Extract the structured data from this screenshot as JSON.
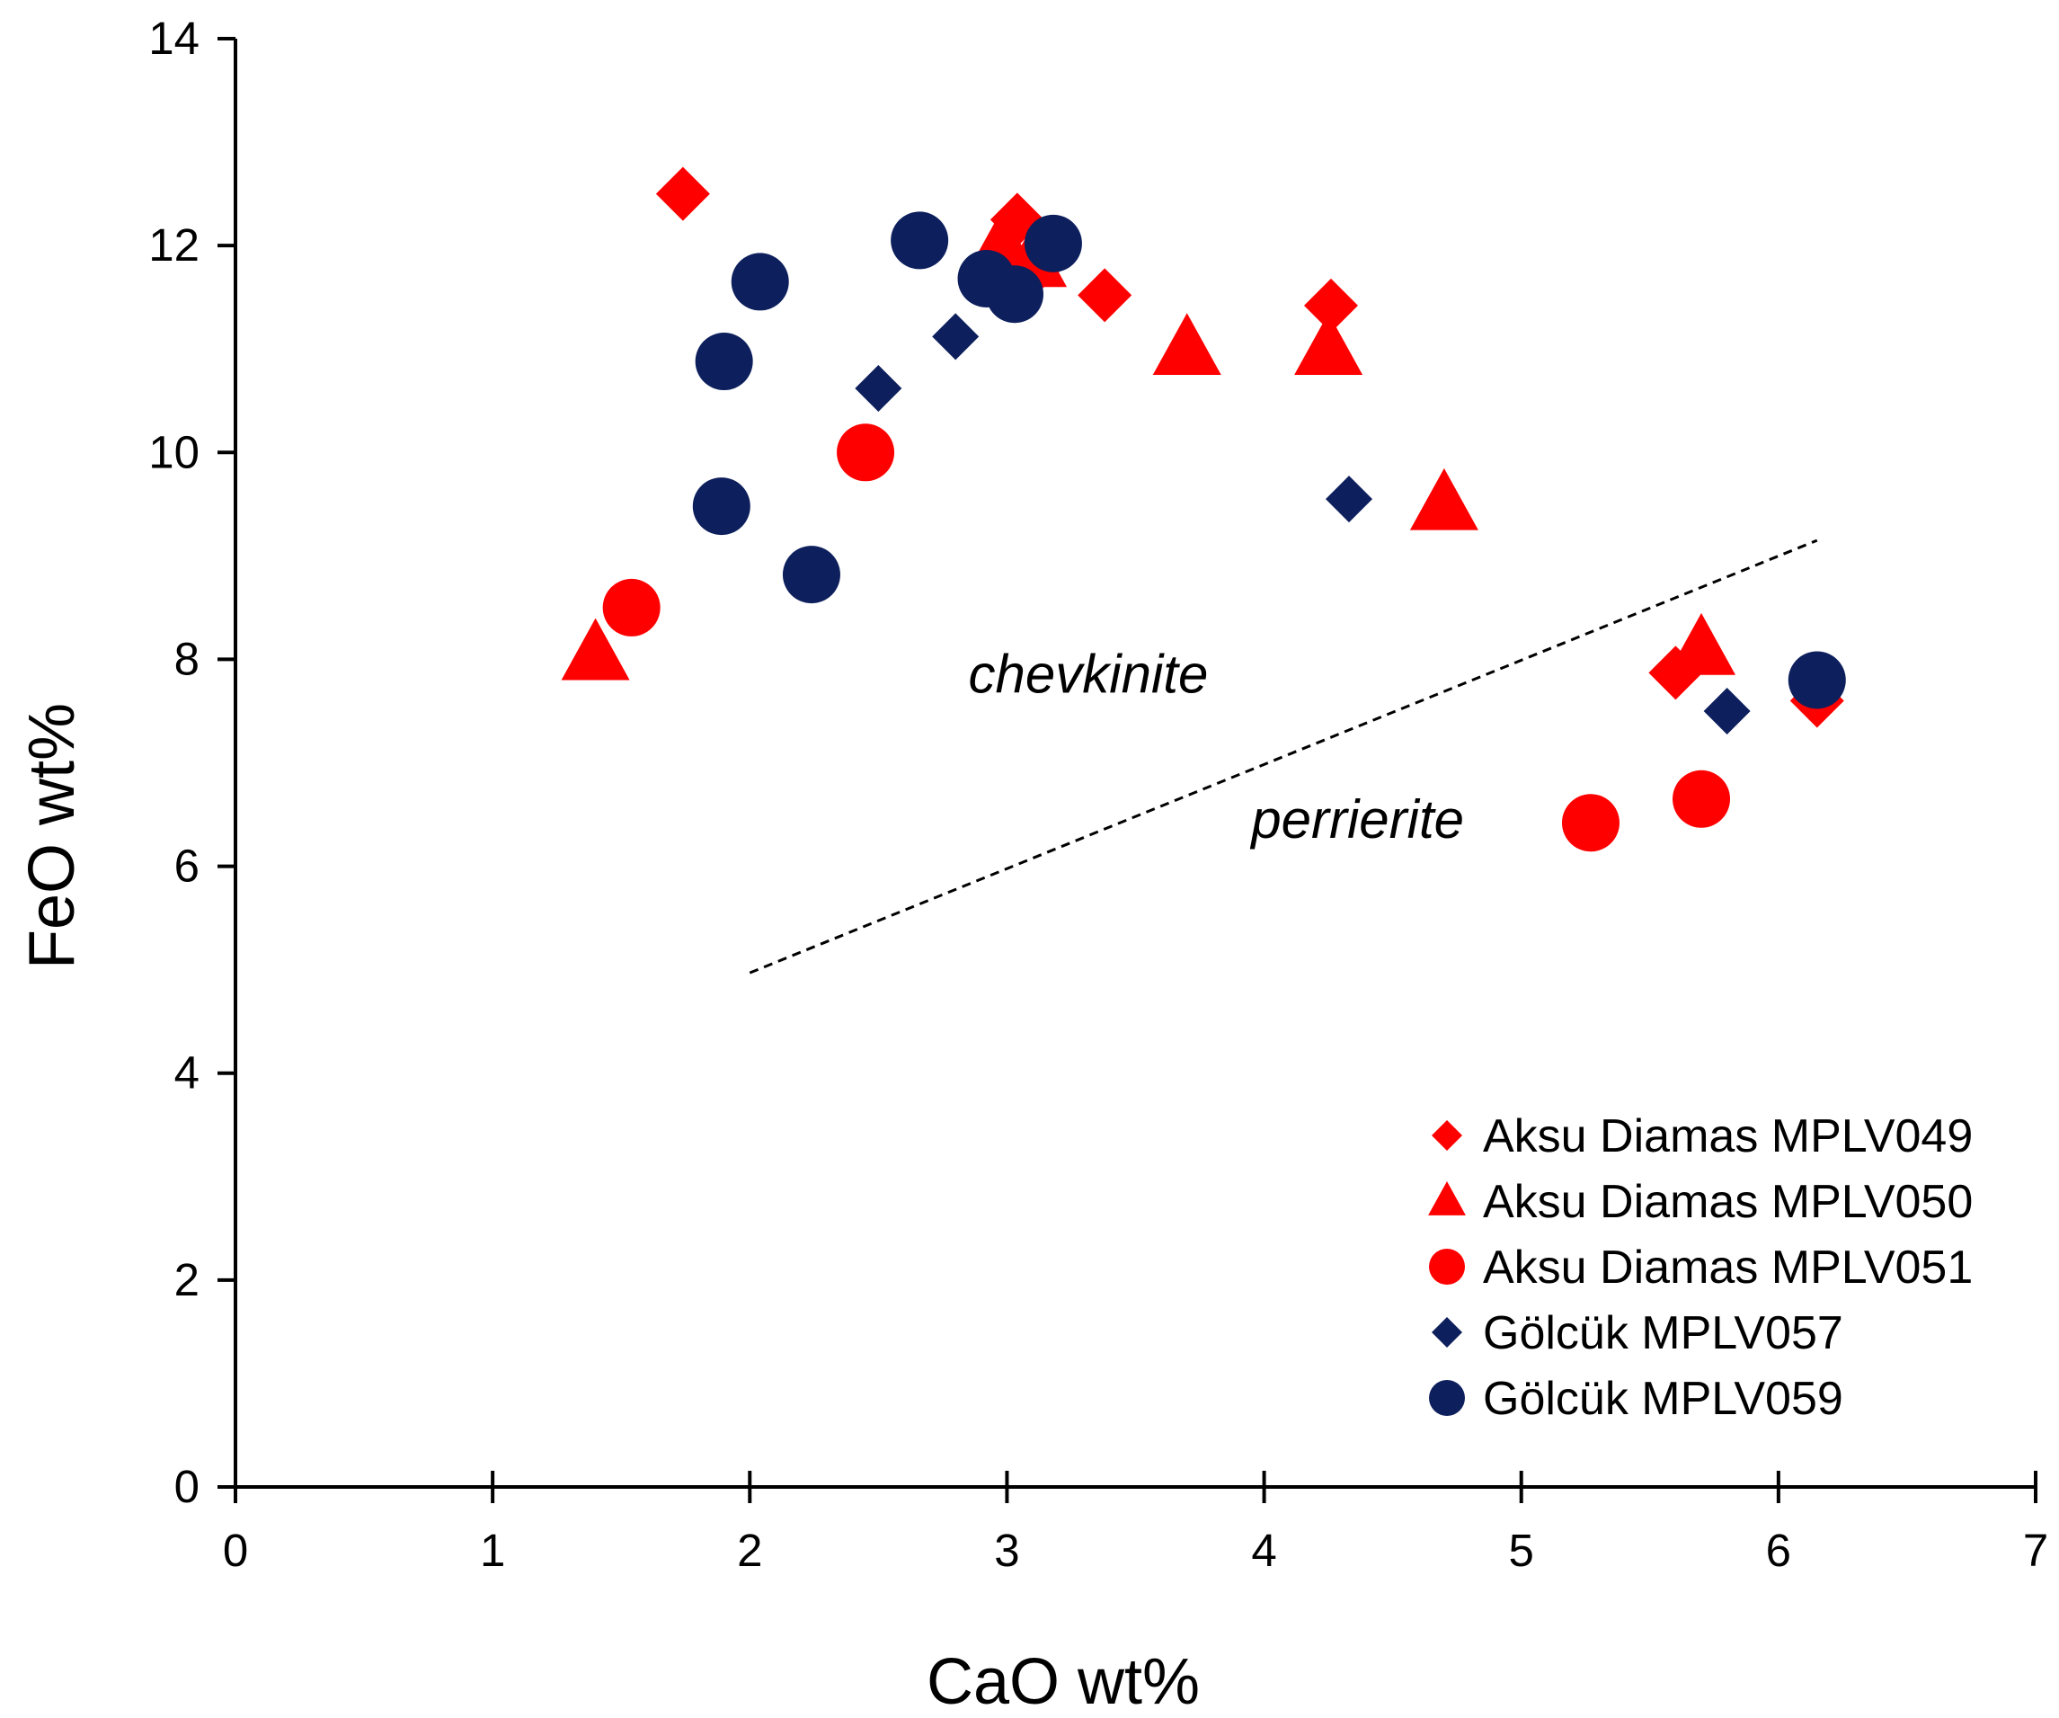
{
  "chart_data": {
    "type": "scatter",
    "xlabel": "CaO wt%",
    "ylabel": "FeO wt%",
    "xlim": [
      0,
      7
    ],
    "ylim": [
      0,
      14
    ],
    "xticks": [
      0,
      1,
      2,
      3,
      4,
      5,
      6,
      7
    ],
    "yticks": [
      0,
      2,
      4,
      6,
      8,
      10,
      12,
      14
    ],
    "grid": false,
    "legend_position": "bottom-right",
    "divider_line": {
      "style": "dashed",
      "points": [
        [
          2.0,
          4.97
        ],
        [
          6.15,
          9.15
        ]
      ]
    },
    "annotations": [
      {
        "text": "chevkinite",
        "x": 2.85,
        "y": 7.85
      },
      {
        "text": "perrierite",
        "x": 3.95,
        "y": 6.45
      }
    ],
    "series": [
      {
        "name": "Aksu Diamas MPLV049",
        "marker": "diamond",
        "color": "#ff0000",
        "points": [
          [
            1.74,
            12.5
          ],
          [
            3.04,
            12.25
          ],
          [
            3.1,
            11.75
          ],
          [
            3.38,
            11.52
          ],
          [
            4.26,
            11.42
          ],
          [
            5.6,
            7.87
          ],
          [
            6.15,
            7.6
          ]
        ]
      },
      {
        "name": "Aksu Diamas MPLV050",
        "marker": "triangle",
        "color": "#ff0000",
        "points": [
          [
            1.4,
            8.05
          ],
          [
            2.98,
            12.0
          ],
          [
            3.1,
            11.85
          ],
          [
            3.7,
            11.0
          ],
          [
            4.25,
            11.0
          ],
          [
            4.7,
            9.5
          ],
          [
            5.7,
            8.1
          ]
        ]
      },
      {
        "name": "Aksu Diamas MPLV051",
        "marker": "circle",
        "color": "#ff0000",
        "points": [
          [
            1.54,
            8.5
          ],
          [
            2.45,
            10.0
          ],
          [
            5.27,
            6.42
          ],
          [
            5.7,
            6.65
          ]
        ]
      },
      {
        "name": "Gölcük MPLV057",
        "marker": "diamond",
        "color": "#0d1f5c",
        "points": [
          [
            2.5,
            10.62
          ],
          [
            2.8,
            11.12
          ],
          [
            4.33,
            9.55
          ],
          [
            5.8,
            7.5
          ]
        ]
      },
      {
        "name": "Gölcük MPLV059",
        "marker": "circle",
        "color": "#0d1f5c",
        "points": [
          [
            1.9,
            10.88
          ],
          [
            2.04,
            11.65
          ],
          [
            1.89,
            9.48
          ],
          [
            2.24,
            8.82
          ],
          [
            2.66,
            12.05
          ],
          [
            2.92,
            11.68
          ],
          [
            3.03,
            11.53
          ],
          [
            3.18,
            12.02
          ],
          [
            6.15,
            7.8
          ]
        ]
      }
    ]
  }
}
